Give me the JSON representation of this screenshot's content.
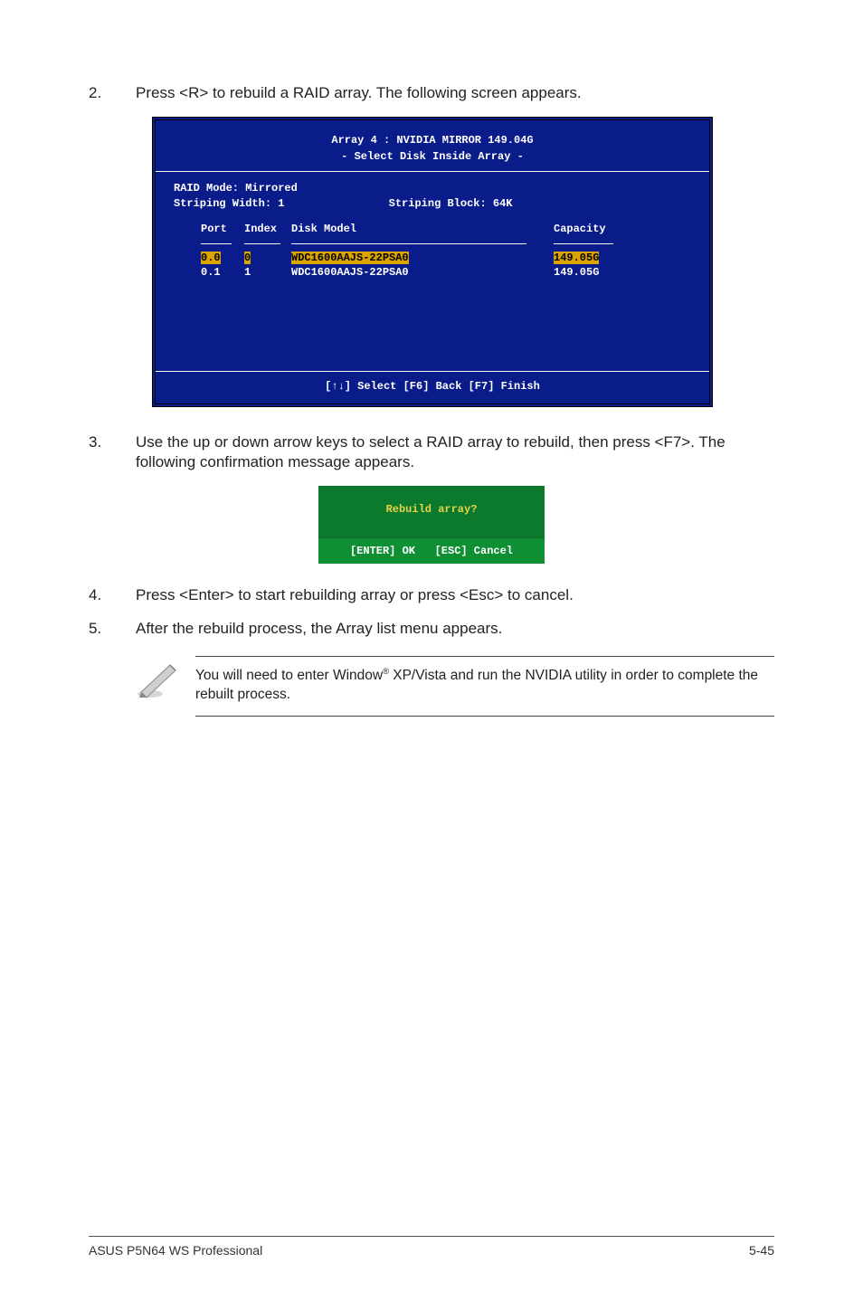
{
  "steps": {
    "s2_num": "2.",
    "s2_text": "Press <R> to rebuild a RAID array. The following screen appears.",
    "s3_num": "3.",
    "s3_text": "Use the up or down arrow keys to select a RAID array to rebuild, then press <F7>. The following confirmation message appears.",
    "s4_num": "4.",
    "s4_text": "Press <Enter> to start rebuilding array or press <Esc> to cancel.",
    "s5_num": "5.",
    "s5_text": "After the rebuild process, the Array list menu appears."
  },
  "bios": {
    "title": "Array 4 : NVIDIA MIRROR  149.04G",
    "subtitle": "- Select Disk Inside Array -",
    "raid_mode_label": "RAID Mode:",
    "raid_mode_value": "Mirrored",
    "strip_width_label": "Striping Width:",
    "strip_width_value": "1",
    "strip_block_label": "Striping Block:",
    "strip_block_value": "64K",
    "hdr_port": "Port",
    "hdr_index": "Index",
    "hdr_model": "Disk Model",
    "hdr_cap": "Capacity",
    "rows": [
      {
        "port": "0.0",
        "index": "0",
        "model": "WDC1600AAJS-22PSA0",
        "cap": "149.05G",
        "highlight": true
      },
      {
        "port": "0.1",
        "index": "1",
        "model": "WDC1600AAJS-22PSA0",
        "cap": "149.05G",
        "highlight": false
      }
    ],
    "footer": "[↑↓] Select  [F6] Back  [F7] Finish",
    "colors": {
      "bg": "#0a1b8a",
      "fg": "#ffffff",
      "highlight_bg": "#d9a300",
      "highlight_fg": "#000000"
    }
  },
  "dialog": {
    "question": "Rebuild array?",
    "ok": "[ENTER] OK",
    "cancel": "[ESC] Cancel",
    "colors": {
      "bg": "#0b7a2d",
      "bar": "#0f8f34",
      "q_fg": "#e6d24a"
    }
  },
  "note": {
    "pre": "You will need to enter Window",
    "sup": "®",
    "post": " XP/Vista and run the NVIDIA utility in order to complete the rebuilt process."
  },
  "footer": {
    "left": "ASUS P5N64 WS Professional",
    "right": "5-45"
  }
}
